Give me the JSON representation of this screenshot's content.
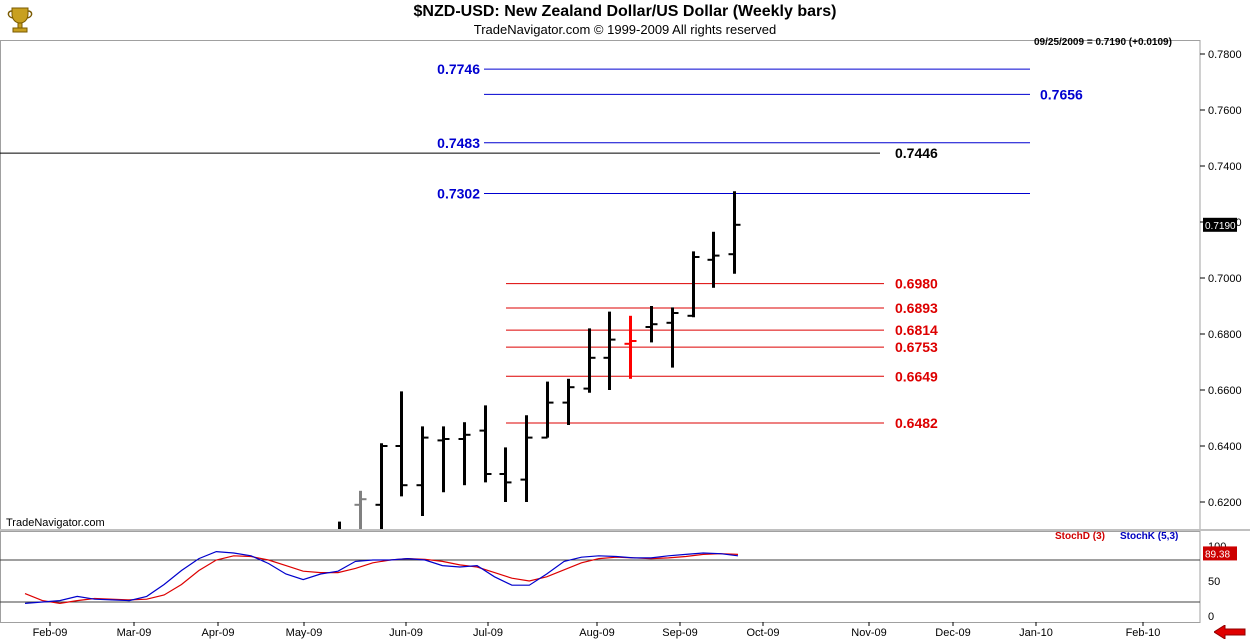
{
  "header": {
    "title": "$NZD-USD:  New Zealand Dollar/US Dollar  (Weekly bars)",
    "subtitle": "TradeNavigator.com © 1999-2009 All rights reserved",
    "watermark": "TradeNavigator.com",
    "last_quote": "09/25/2009 = 0.7190 (+0.0109)"
  },
  "icons": {
    "logo": "trophy-icon",
    "scroll": "red-left-arrow-icon"
  },
  "colors": {
    "blue_level": "#0000d0",
    "red_level": "#dd0000",
    "black_level": "#000000",
    "bar": "#000000",
    "bar_highlight": "#ff0000",
    "bar_old": "#808080",
    "stochd": "#dd0000",
    "stochk": "#0000cc"
  },
  "chart_data": [
    {
      "type": "ohlc",
      "ylim": [
        0.61,
        0.785
      ],
      "yticks": [
        "0.7800",
        "0.7600",
        "0.7400",
        "0.7200",
        "0.7000",
        "0.6800",
        "0.6600",
        "0.6400",
        "0.6200"
      ],
      "xticks": [
        "Feb-09",
        "Mar-09",
        "Apr-09",
        "May-09",
        "Jun-09",
        "Jul-09",
        "Aug-09",
        "Sep-09",
        "Oct-09",
        "Nov-09",
        "Dec-09",
        "Jan-10",
        "Feb-10"
      ],
      "last_price_label": "0.7190",
      "bars": [
        {
          "o": 0.6045,
          "h": 0.613,
          "l": 0.601,
          "c": 0.608,
          "color": "#000000"
        },
        {
          "o": 0.619,
          "h": 0.624,
          "l": 0.608,
          "c": 0.621,
          "color": "#808080"
        },
        {
          "o": 0.619,
          "h": 0.641,
          "l": 0.609,
          "c": 0.64,
          "color": "#000000"
        },
        {
          "o": 0.64,
          "h": 0.6595,
          "l": 0.622,
          "c": 0.626,
          "color": "#000000"
        },
        {
          "o": 0.626,
          "h": 0.647,
          "l": 0.615,
          "c": 0.643,
          "color": "#000000"
        },
        {
          "o": 0.642,
          "h": 0.647,
          "l": 0.6235,
          "c": 0.6425,
          "color": "#000000"
        },
        {
          "o": 0.6425,
          "h": 0.6485,
          "l": 0.626,
          "c": 0.644,
          "color": "#000000"
        },
        {
          "o": 0.6455,
          "h": 0.6545,
          "l": 0.627,
          "c": 0.63,
          "color": "#000000"
        },
        {
          "o": 0.63,
          "h": 0.6395,
          "l": 0.62,
          "c": 0.627,
          "color": "#000000"
        },
        {
          "o": 0.628,
          "h": 0.651,
          "l": 0.62,
          "c": 0.643,
          "color": "#000000"
        },
        {
          "o": 0.643,
          "h": 0.663,
          "l": 0.643,
          "c": 0.6555,
          "color": "#000000"
        },
        {
          "o": 0.6555,
          "h": 0.664,
          "l": 0.6475,
          "c": 0.661,
          "color": "#000000"
        },
        {
          "o": 0.6605,
          "h": 0.682,
          "l": 0.659,
          "c": 0.6715,
          "color": "#000000"
        },
        {
          "o": 0.6715,
          "h": 0.688,
          "l": 0.66,
          "c": 0.678,
          "color": "#000000"
        },
        {
          "o": 0.6765,
          "h": 0.6865,
          "l": 0.664,
          "c": 0.6775,
          "color": "#ff0000"
        },
        {
          "o": 0.6825,
          "h": 0.69,
          "l": 0.677,
          "c": 0.6835,
          "color": "#000000"
        },
        {
          "o": 0.684,
          "h": 0.6895,
          "l": 0.668,
          "c": 0.6875,
          "color": "#000000"
        },
        {
          "o": 0.6865,
          "h": 0.7095,
          "l": 0.686,
          "c": 0.7075,
          "color": "#000000"
        },
        {
          "o": 0.7065,
          "h": 0.7165,
          "l": 0.6965,
          "c": 0.708,
          "color": "#000000"
        },
        {
          "o": 0.7085,
          "h": 0.731,
          "l": 0.7015,
          "c": 0.719,
          "color": "#000000"
        }
      ],
      "levels": [
        {
          "value": 0.7746,
          "label": "0.7746",
          "color": "#0000d0",
          "label_side": "left"
        },
        {
          "value": 0.7656,
          "label": "0.7656",
          "color": "#0000d0",
          "label_side": "right"
        },
        {
          "value": 0.7483,
          "label": "0.7483",
          "color": "#0000d0",
          "label_side": "left"
        },
        {
          "value": 0.7446,
          "label": "0.7446",
          "color": "#000000",
          "label_side": "right"
        },
        {
          "value": 0.7302,
          "label": "0.7302",
          "color": "#0000d0",
          "label_side": "left"
        },
        {
          "value": 0.698,
          "label": "0.6980",
          "color": "#dd0000",
          "label_side": "right"
        },
        {
          "value": 0.6893,
          "label": "0.6893",
          "color": "#dd0000",
          "label_side": "right"
        },
        {
          "value": 0.6814,
          "label": "0.6814",
          "color": "#dd0000",
          "label_side": "right"
        },
        {
          "value": 0.6753,
          "label": "0.6753",
          "color": "#dd0000",
          "label_side": "right"
        },
        {
          "value": 0.6649,
          "label": "0.6649",
          "color": "#dd0000",
          "label_side": "right"
        },
        {
          "value": 0.6482,
          "label": "0.6482",
          "color": "#dd0000",
          "label_side": "right"
        }
      ]
    },
    {
      "type": "line",
      "ylim": [
        0,
        100
      ],
      "yticks": [
        "100",
        "50",
        "0"
      ],
      "reference_lines": [
        80,
        20
      ],
      "last_value_label": "89.38",
      "series": [
        {
          "name": "StochD (3)",
          "color": "#dd0000",
          "values": [
            32,
            22,
            18,
            22,
            25,
            24,
            23,
            24,
            30,
            45,
            65,
            80,
            86,
            85,
            80,
            72,
            64,
            62,
            62,
            68,
            76,
            80,
            82,
            81,
            78,
            73,
            70,
            62,
            54,
            50,
            56,
            66,
            76,
            82,
            84,
            83,
            82,
            83,
            85,
            88,
            89,
            88
          ]
        },
        {
          "name": "StochK (5,3)",
          "color": "#0000cc",
          "values": [
            18,
            20,
            22,
            28,
            24,
            23,
            22,
            28,
            45,
            65,
            82,
            92,
            90,
            86,
            75,
            60,
            52,
            60,
            64,
            78,
            80,
            80,
            82,
            80,
            72,
            70,
            72,
            56,
            44,
            44,
            60,
            78,
            84,
            86,
            85,
            83,
            83,
            86,
            88,
            90,
            89,
            86
          ]
        }
      ]
    }
  ]
}
